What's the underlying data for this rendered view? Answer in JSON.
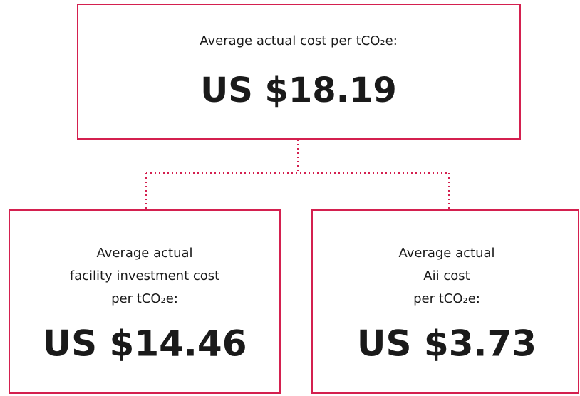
{
  "nodes": [
    {
      "label": [
        "Average actual cost per tCO₂e:"
      ],
      "value": "US $18.19"
    },
    {
      "label": [
        "Average actual",
        "facility investment cost",
        "per tCO₂e:"
      ],
      "value": "US $14.46"
    },
    {
      "label": [
        "Average actual",
        "Aii cost",
        "per tCO₂e:"
      ],
      "value": "US $3.73"
    }
  ]
}
